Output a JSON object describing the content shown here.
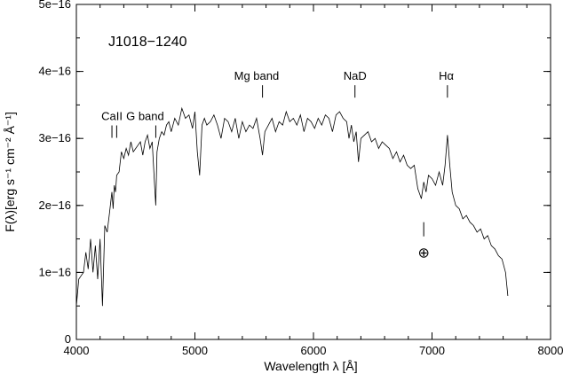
{
  "chart_data": {
    "type": "line",
    "title": "J1018−1240",
    "xlabel": "Wavelength λ [Å]",
    "ylabel": "F(λ)[erg s⁻¹ cm⁻² Å⁻¹]",
    "xlim": [
      4000,
      8000
    ],
    "ylim": [
      0,
      5e-16
    ],
    "grid": false,
    "x_ticks": [
      4000,
      5000,
      6000,
      7000,
      8000
    ],
    "x_tick_labels": [
      "4000",
      "5000",
      "6000",
      "7000",
      "8000"
    ],
    "y_ticks": [
      0,
      1e-16,
      2e-16,
      3e-16,
      4e-16,
      5e-16
    ],
    "y_tick_labels": [
      "0",
      "1e−16",
      "2e−16",
      "3e−16",
      "4e−16",
      "5e−16"
    ],
    "annotations": [
      {
        "text": "CaII",
        "x": 4300,
        "y": 3.3e-16,
        "markers": [
          4300,
          4340
        ]
      },
      {
        "text": "G band",
        "x": 4580,
        "y": 3.3e-16,
        "markers": [
          4670
        ]
      },
      {
        "text": "Mg band",
        "x": 5520,
        "y": 3.9e-16,
        "markers": [
          5570
        ]
      },
      {
        "text": "NaD",
        "x": 6350,
        "y": 3.9e-16,
        "markers": [
          6350
        ]
      },
      {
        "text": "Hα",
        "x": 7120,
        "y": 3.9e-16,
        "markers": [
          7130
        ]
      },
      {
        "text": "⊕",
        "x": 6930,
        "y": 1.3e-16,
        "markers": [
          6930
        ],
        "marker_below": true
      }
    ],
    "series": [
      {
        "x": [
          4000,
          4020,
          4040,
          4060,
          4080,
          4100,
          4120,
          4140,
          4160,
          4180,
          4200,
          4220,
          4240,
          4260,
          4280,
          4300,
          4310,
          4320,
          4330,
          4340,
          4360,
          4380,
          4400,
          4420,
          4440,
          4460,
          4480,
          4500,
          4520,
          4540,
          4560,
          4580,
          4600,
          4620,
          4640,
          4660,
          4670,
          4680,
          4700,
          4720,
          4740,
          4760,
          4780,
          4800,
          4830,
          4860,
          4890,
          4920,
          4950,
          4980,
          5000,
          5020,
          5040,
          5060,
          5080,
          5100,
          5130,
          5160,
          5190,
          5220,
          5250,
          5280,
          5310,
          5340,
          5370,
          5400,
          5430,
          5460,
          5490,
          5520,
          5550,
          5570,
          5590,
          5620,
          5650,
          5680,
          5710,
          5740,
          5770,
          5800,
          5830,
          5860,
          5890,
          5920,
          5950,
          5980,
          6010,
          6040,
          6070,
          6100,
          6130,
          6160,
          6190,
          6220,
          6250,
          6280,
          6300,
          6320,
          6340,
          6360,
          6380,
          6400,
          6430,
          6460,
          6490,
          6520,
          6550,
          6580,
          6610,
          6640,
          6670,
          6700,
          6730,
          6760,
          6790,
          6820,
          6850,
          6880,
          6910,
          6930,
          6950,
          6970,
          7000,
          7030,
          7060,
          7090,
          7110,
          7130,
          7150,
          7170,
          7200,
          7230,
          7260,
          7290,
          7320,
          7350,
          7380,
          7410,
          7440,
          7470,
          7500,
          7530,
          7560,
          7590,
          7620,
          7640
        ],
        "values": [
          5e-17,
          9e-17,
          9.5e-17,
          1e-16,
          1.3e-16,
          1.05e-16,
          1.5e-16,
          1e-16,
          1.4e-16,
          9e-17,
          1.5e-16,
          5e-17,
          1.7e-16,
          1.6e-16,
          1.9e-16,
          2.2e-16,
          1.95e-16,
          2.3e-16,
          2.2e-16,
          2.45e-16,
          2.5e-16,
          2.8e-16,
          2.7e-16,
          2.85e-16,
          2.75e-16,
          2.95e-16,
          2.8e-16,
          2.85e-16,
          2.9e-16,
          2.95e-16,
          2.75e-16,
          2.95e-16,
          3.05e-16,
          2.85e-16,
          2.95e-16,
          2.3e-16,
          2e-16,
          2.8e-16,
          3e-16,
          3.1e-16,
          3.05e-16,
          3.2e-16,
          3.25e-16,
          3.1e-16,
          3.3e-16,
          3.2e-16,
          3.45e-16,
          3.3e-16,
          3.35e-16,
          3.15e-16,
          3.4e-16,
          2.8e-16,
          2.45e-16,
          3.2e-16,
          3.3e-16,
          3.2e-16,
          3.25e-16,
          3.35e-16,
          3.2e-16,
          3e-16,
          3.3e-16,
          3.25e-16,
          3.1e-16,
          3.3e-16,
          3e-16,
          3.25e-16,
          3.1e-16,
          3.2e-16,
          3.15e-16,
          3.3e-16,
          3e-16,
          2.75e-16,
          3.1e-16,
          3.2e-16,
          3.3e-16,
          3.1e-16,
          3.25e-16,
          3.2e-16,
          3.4e-16,
          3.25e-16,
          3.3e-16,
          3.2e-16,
          3.35e-16,
          3.1e-16,
          3.3e-16,
          3.25e-16,
          3.15e-16,
          3.3e-16,
          3.2e-16,
          3.35e-16,
          3.3e-16,
          3.1e-16,
          3.35e-16,
          3.4e-16,
          3.3e-16,
          3.25e-16,
          3e-16,
          3.2e-16,
          2.95e-16,
          3.1e-16,
          2.65e-16,
          3e-16,
          3.05e-16,
          3.1e-16,
          2.95e-16,
          3e-16,
          2.85e-16,
          2.95e-16,
          2.9e-16,
          2.85e-16,
          2.7e-16,
          2.8e-16,
          2.65e-16,
          2.75e-16,
          2.6e-16,
          2.55e-16,
          2.6e-16,
          2.25e-16,
          2.1e-16,
          2.35e-16,
          2.2e-16,
          2.45e-16,
          2.4e-16,
          2.3e-16,
          2.5e-16,
          2.3e-16,
          2.6e-16,
          3.05e-16,
          2.6e-16,
          2.2e-16,
          2e-16,
          1.95e-16,
          1.8e-16,
          1.85e-16,
          1.75e-16,
          1.7e-16,
          1.6e-16,
          1.65e-16,
          1.5e-16,
          1.55e-16,
          1.4e-16,
          1.35e-16,
          1.25e-16,
          1.2e-16,
          1e-16,
          6.5e-17
        ]
      }
    ]
  }
}
